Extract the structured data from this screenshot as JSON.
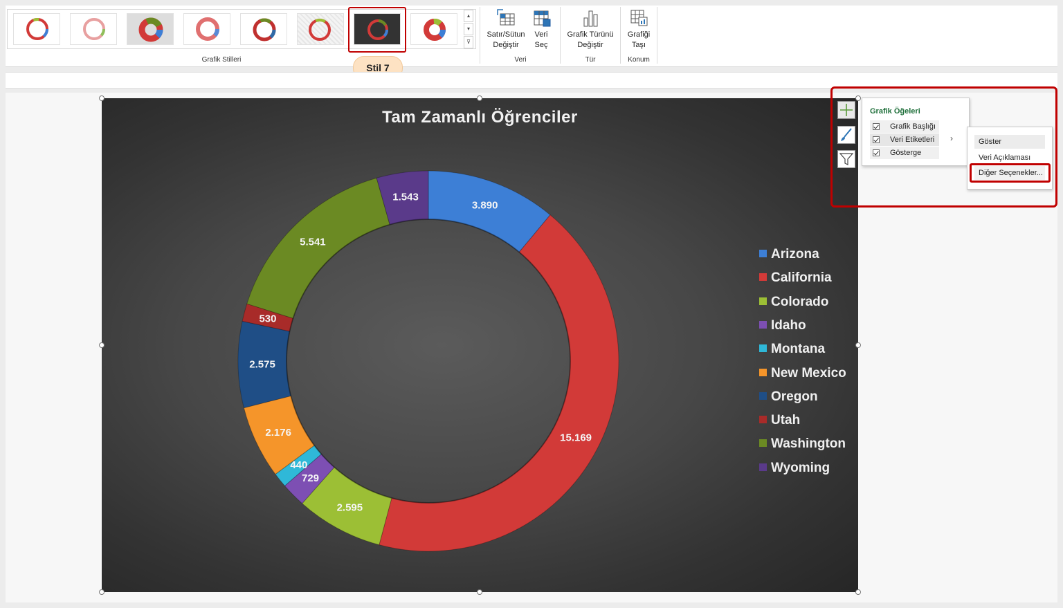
{
  "ribbon": {
    "groups": {
      "styles_label": "Grafik Stilleri",
      "data_label": "Veri",
      "type_label": "Tür",
      "location_label": "Konum"
    },
    "buttons": {
      "switch_row_col": [
        "Satır/Sütun",
        "Değiştir"
      ],
      "select_data": [
        "Veri",
        "Seç"
      ],
      "change_type": [
        "Grafik Türünü",
        "Değiştir"
      ],
      "move_chart": [
        "Grafiği",
        "Taşı"
      ]
    },
    "tooltip": "Stil 7"
  },
  "chart": {
    "title": "Tam Zamanlı Öğrenciler"
  },
  "chart_data": {
    "type": "pie",
    "title": "Tam Zamanlı Öğrenciler",
    "labels": [
      "Arizona",
      "California",
      "Colorado",
      "Idaho",
      "Montana",
      "New Mexico",
      "Oregon",
      "Utah",
      "Washington",
      "Wyoming"
    ],
    "values": [
      3890,
      15169,
      2595,
      729,
      440,
      2176,
      2575,
      530,
      5541,
      1543
    ],
    "data_labels": [
      "3.890",
      "15.169",
      "2.595",
      "729",
      "440",
      "2.176",
      "2.575",
      "530",
      "5.541",
      "1.543"
    ],
    "colors": [
      "#3d7fd6",
      "#d23a38",
      "#9cbf35",
      "#7d4fb3",
      "#2fb8d8",
      "#f5952a",
      "#1f4e86",
      "#a82b29",
      "#6b8a23",
      "#5a3a8a"
    ],
    "legend_position": "right",
    "donut": true
  },
  "elements_popup": {
    "title": "Grafik Öğeleri",
    "items": [
      "Grafik Başlığı",
      "Veri Etiketleri",
      "Gösterge"
    ],
    "checked": [
      true,
      true,
      true
    ]
  },
  "submenu": {
    "items": [
      "Göster",
      "Veri Açıklaması",
      "Diğer Seçenekler..."
    ]
  },
  "icons": {
    "add_element": "plus-icon",
    "styles": "brush-icon",
    "filter": "filter-icon"
  }
}
